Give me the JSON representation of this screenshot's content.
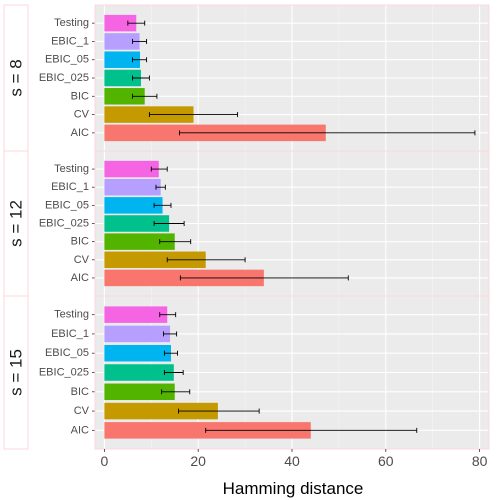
{
  "chart_data": {
    "type": "bar",
    "orientation": "horizontal",
    "xlabel": "Hamming distance",
    "xlim": [
      -2,
      82
    ],
    "xticks": [
      0,
      20,
      40,
      60,
      80
    ],
    "grid": true,
    "legend": "none",
    "categories": [
      "Testing",
      "EBIC_1",
      "EBIC_05",
      "EBIC_025",
      "BIC",
      "CV",
      "AIC"
    ],
    "colors": {
      "Testing": "#F564E3",
      "EBIC_1": "#B79FFF",
      "EBIC_05": "#00B4F0",
      "EBIC_025": "#00C08B",
      "BIC": "#53B400",
      "CV": "#C49A00",
      "AIC": "#F8766D"
    },
    "panels": [
      {
        "label": "s = 8",
        "values": [
          6.8,
          7.5,
          7.6,
          7.8,
          8.6,
          19.0,
          47.2
        ],
        "err_low": [
          5.0,
          6.0,
          6.0,
          6.0,
          6.0,
          9.6,
          16.0
        ],
        "err_high": [
          8.6,
          9.0,
          9.0,
          9.6,
          11.2,
          28.4,
          79.0
        ]
      },
      {
        "label": "s = 12",
        "values": [
          11.6,
          12.0,
          12.4,
          13.8,
          15.0,
          21.6,
          34.0
        ],
        "err_low": [
          10.0,
          11.0,
          10.6,
          10.6,
          11.8,
          13.4,
          16.2
        ],
        "err_high": [
          13.4,
          13.0,
          14.2,
          17.0,
          18.4,
          30.0,
          52.0
        ]
      },
      {
        "label": "s = 15",
        "values": [
          13.4,
          14.0,
          14.2,
          14.8,
          15.0,
          24.2,
          44.0
        ],
        "err_low": [
          11.8,
          12.6,
          12.8,
          12.8,
          12.2,
          15.8,
          21.6
        ],
        "err_high": [
          15.2,
          15.4,
          15.6,
          16.8,
          18.2,
          33.0,
          66.6
        ]
      }
    ]
  }
}
